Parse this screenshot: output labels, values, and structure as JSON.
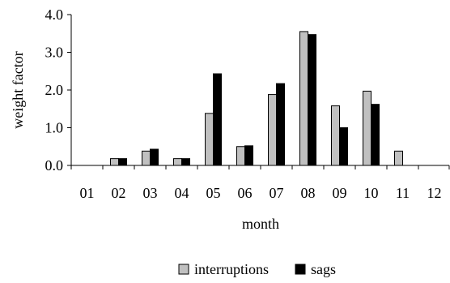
{
  "chart_data": {
    "type": "bar",
    "title": "",
    "xlabel": "month",
    "ylabel": "weight factor",
    "categories": [
      "01",
      "02",
      "03",
      "04",
      "05",
      "06",
      "07",
      "08",
      "09",
      "10",
      "11",
      "12"
    ],
    "series": [
      {
        "name": "interruptions",
        "color": "#c0c0c0",
        "values": [
          0,
          0.18,
          0.38,
          0.18,
          1.38,
          0.5,
          1.88,
          3.55,
          1.58,
          1.97,
          0.38,
          0
        ]
      },
      {
        "name": "sags",
        "color": "#000000",
        "values": [
          0,
          0.18,
          0.43,
          0.18,
          2.43,
          0.52,
          2.17,
          3.47,
          1.0,
          1.62,
          0,
          0
        ]
      }
    ],
    "ylim": [
      0,
      4
    ],
    "yticks": [
      "0.0",
      "1.0",
      "2.0",
      "3.0",
      "4.0"
    ],
    "grid": false,
    "legend": "bottom"
  }
}
